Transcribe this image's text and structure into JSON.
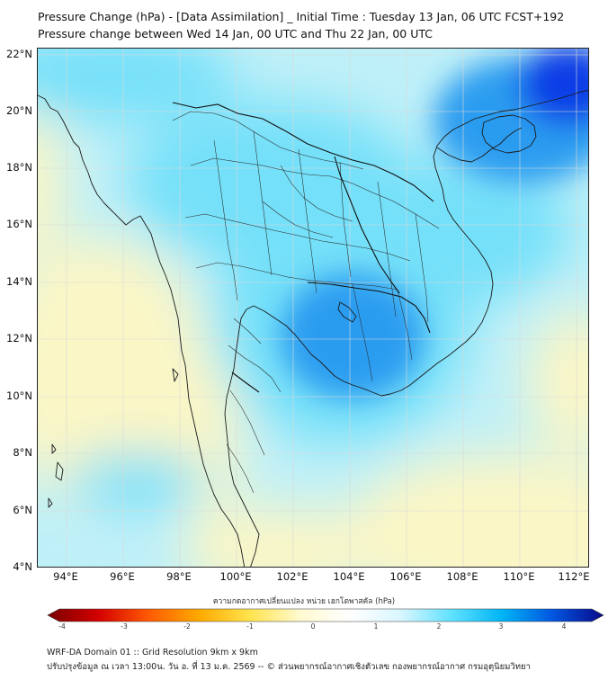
{
  "title_line1": "Pressure Change (hPa) - [Data Assimilation] _ Initial Time : Tuesday 13 Jan, 06 UTC FCST+192",
  "title_line2": "Pressure change between Wed 14 Jan, 00 UTC and Thu 22 Jan, 00 UTC",
  "lat_labels": [
    "22°N",
    "20°N",
    "18°N",
    "16°N",
    "14°N",
    "12°N",
    "10°N",
    "8°N",
    "6°N",
    "4°N"
  ],
  "lon_labels": [
    "94°E",
    "96°E",
    "98°E",
    "100°E",
    "102°E",
    "104°E",
    "106°E",
    "108°E",
    "110°E",
    "112°E"
  ],
  "colorbar": {
    "title": "ความกดอากาศเปลี่ยนแปลง หน่วย เฮกโตพาสคัล (hPa)",
    "ticks": [
      "-4",
      "-3",
      "-2",
      "-1",
      "0",
      "1",
      "2",
      "3",
      "4"
    ],
    "colors": [
      "#7a0000",
      "#d40000",
      "#ff5a00",
      "#ffaa00",
      "#ffe34d",
      "#fffad0",
      "#ffffff",
      "#d8f6ff",
      "#5fe1ff",
      "#00b4f5",
      "#0055e0",
      "#0a0a8a"
    ]
  },
  "footer_line1": "WRF-DA Domain 01 :: Grid Resolution 9km x 9km",
  "footer_line2": "ปรับปรุงข้อมูล ณ เวลา 13:00น. วัน อ. ที่ 13 ม.ค. 2569 -- © ส่วนพยากรณ์อากาศเชิงตัวเลข กองพยากรณ์อากาศ กรมอุตุนิยมวิทยา",
  "map_colors": {
    "base": "#bff0f8",
    "yellow": "#fbf6c6",
    "cyan": "#74e0f9",
    "blue": "#2a9cf0",
    "deep_blue": "#0a3ee6"
  }
}
